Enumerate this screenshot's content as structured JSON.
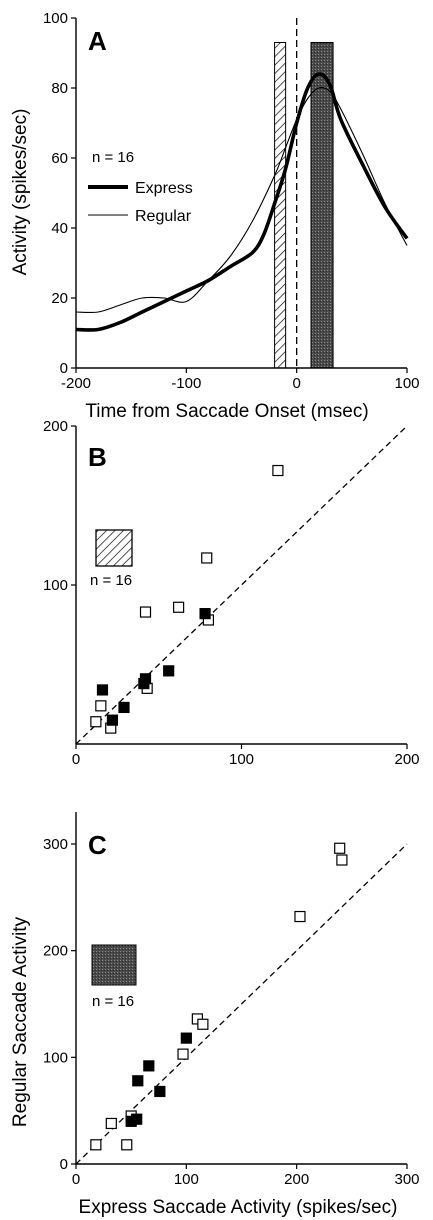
{
  "chart_data": [
    {
      "panel": "A",
      "type": "line",
      "xlabel": "Time from Saccade Onset (msec)",
      "ylabel": "Activity (spikes/sec)",
      "xlim": [
        -200,
        100
      ],
      "ylim": [
        0,
        100
      ],
      "xticks": [
        "-200",
        "-100",
        "0",
        "100"
      ],
      "yticks": [
        "0",
        "20",
        "40",
        "60",
        "80",
        "100"
      ],
      "annotation": "n = 16",
      "legend_position": "left",
      "shaded_windows": [
        {
          "style": "hatched",
          "x": [
            -20,
            -10
          ],
          "y_top": 93
        },
        {
          "style": "stippled",
          "x": [
            13,
            33
          ],
          "y_top": 93
        }
      ],
      "reference_line_x": 0,
      "series": [
        {
          "name": "Express",
          "style": "thick",
          "x": [
            -200,
            -180,
            -160,
            -140,
            -120,
            -100,
            -80,
            -60,
            -40,
            -30,
            -20,
            -10,
            0,
            10,
            20,
            30,
            40,
            60,
            80,
            100
          ],
          "y": [
            11,
            11,
            13,
            16,
            19,
            22,
            25,
            29,
            33,
            38,
            47,
            57,
            70,
            80,
            84,
            81,
            71,
            58,
            46,
            37
          ]
        },
        {
          "name": "Regular",
          "style": "thin",
          "x": [
            -200,
            -180,
            -160,
            -140,
            -120,
            -100,
            -80,
            -60,
            -40,
            -20,
            -10,
            0,
            10,
            20,
            30,
            40,
            60,
            80,
            100
          ],
          "y": [
            16,
            16,
            18,
            20,
            20,
            19,
            25,
            32,
            42,
            55,
            63,
            71,
            77,
            80,
            79,
            74,
            61,
            47,
            35
          ]
        }
      ]
    },
    {
      "panel": "B",
      "type": "scatter",
      "xlim": [
        0,
        200
      ],
      "ylim": [
        0,
        200
      ],
      "xticks": [
        "0",
        "100",
        "200"
      ],
      "yticks": [
        "100",
        "200"
      ],
      "annotation": "n = 16",
      "window_icon": "hatched",
      "unity_line": true,
      "series": [
        {
          "marker": "open-square",
          "points": [
            [
              12,
              14
            ],
            [
              15,
              24
            ],
            [
              21,
              10
            ],
            [
              43,
              35
            ],
            [
              42,
              83
            ],
            [
              62,
              86
            ],
            [
              79,
              117
            ],
            [
              80,
              78
            ],
            [
              122,
              172
            ]
          ]
        },
        {
          "marker": "filled-square",
          "points": [
            [
              16,
              34
            ],
            [
              22,
              15
            ],
            [
              29,
              23
            ],
            [
              41,
              38
            ],
            [
              42,
              41
            ],
            [
              56,
              46
            ],
            [
              78,
              82
            ]
          ]
        }
      ]
    },
    {
      "panel": "C",
      "type": "scatter",
      "xlabel": "Express Saccade Activity (spikes/sec)",
      "ylabel": "Regular Saccade Activity",
      "xlim": [
        0,
        300
      ],
      "ylim": [
        0,
        330
      ],
      "xticks": [
        "0",
        "100",
        "200",
        "300"
      ],
      "yticks": [
        "0",
        "100",
        "200",
        "300"
      ],
      "annotation": "n = 16",
      "window_icon": "stippled",
      "unity_line": true,
      "series": [
        {
          "marker": "open-square",
          "points": [
            [
              18,
              18
            ],
            [
              32,
              38
            ],
            [
              46,
              18
            ],
            [
              50,
              45
            ],
            [
              97,
              103
            ],
            [
              110,
              136
            ],
            [
              115,
              131
            ],
            [
              203,
              232
            ],
            [
              239,
              296
            ],
            [
              241,
              285
            ]
          ]
        },
        {
          "marker": "filled-square",
          "points": [
            [
              50,
              40
            ],
            [
              55,
              42
            ],
            [
              56,
              78
            ],
            [
              66,
              92
            ],
            [
              76,
              68
            ],
            [
              100,
              118
            ]
          ]
        }
      ]
    }
  ]
}
